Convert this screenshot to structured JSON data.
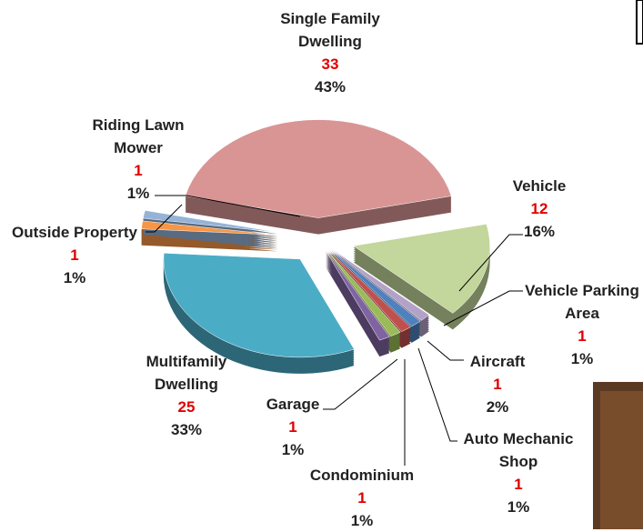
{
  "chart_data": {
    "type": "pie",
    "categories": [
      "Single Family Dwelling",
      "Vehicle",
      "Vehicle Parking Area",
      "Aircraft",
      "Auto Mechanic Shop",
      "Condominium",
      "Garage",
      "Multifamily Dwelling",
      "Outside Property",
      "Riding Lawn Mower"
    ],
    "values": [
      33,
      12,
      1,
      1,
      1,
      1,
      1,
      25,
      1,
      1
    ],
    "percent_labels": [
      "43%",
      "16%",
      "1%",
      "2%",
      "1%",
      "1%",
      "1%",
      "33%",
      "1%",
      "1%"
    ],
    "colors": [
      "#d99594",
      "#c3d69b",
      "#b3a2c7",
      "#4f81bd",
      "#c0504d",
      "#9bbb59",
      "#8064a2",
      "#4bacc6",
      "#f79646",
      "#95b3d7"
    ]
  }
}
